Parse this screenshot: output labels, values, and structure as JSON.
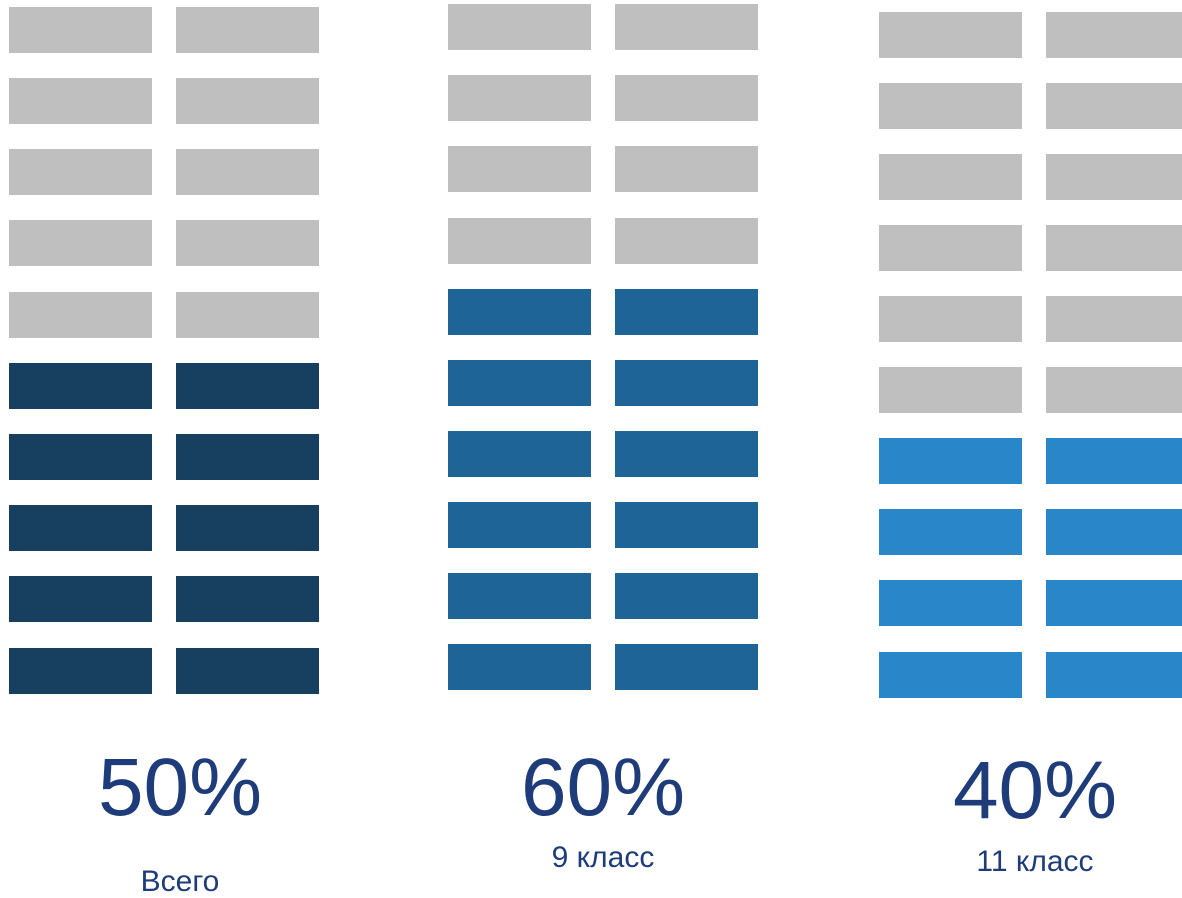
{
  "chart_data": [
    {
      "type": "waffle",
      "value_percent": 50,
      "label": "50%",
      "caption": "Всего",
      "total_blocks": 20,
      "filled_blocks": 10,
      "filled_color": "#173f5f",
      "empty_color": "#bfbfbf"
    },
    {
      "type": "waffle",
      "value_percent": 60,
      "label": "60%",
      "caption": "9 класс",
      "total_blocks": 20,
      "filled_blocks": 12,
      "filled_color": "#1f6496",
      "empty_color": "#bfbfbf"
    },
    {
      "type": "waffle",
      "value_percent": 40,
      "label": "40%",
      "caption": "11 класс",
      "total_blocks": 20,
      "filled_blocks": 8,
      "filled_color": "#2986c8",
      "empty_color": "#bfbfbf"
    }
  ]
}
